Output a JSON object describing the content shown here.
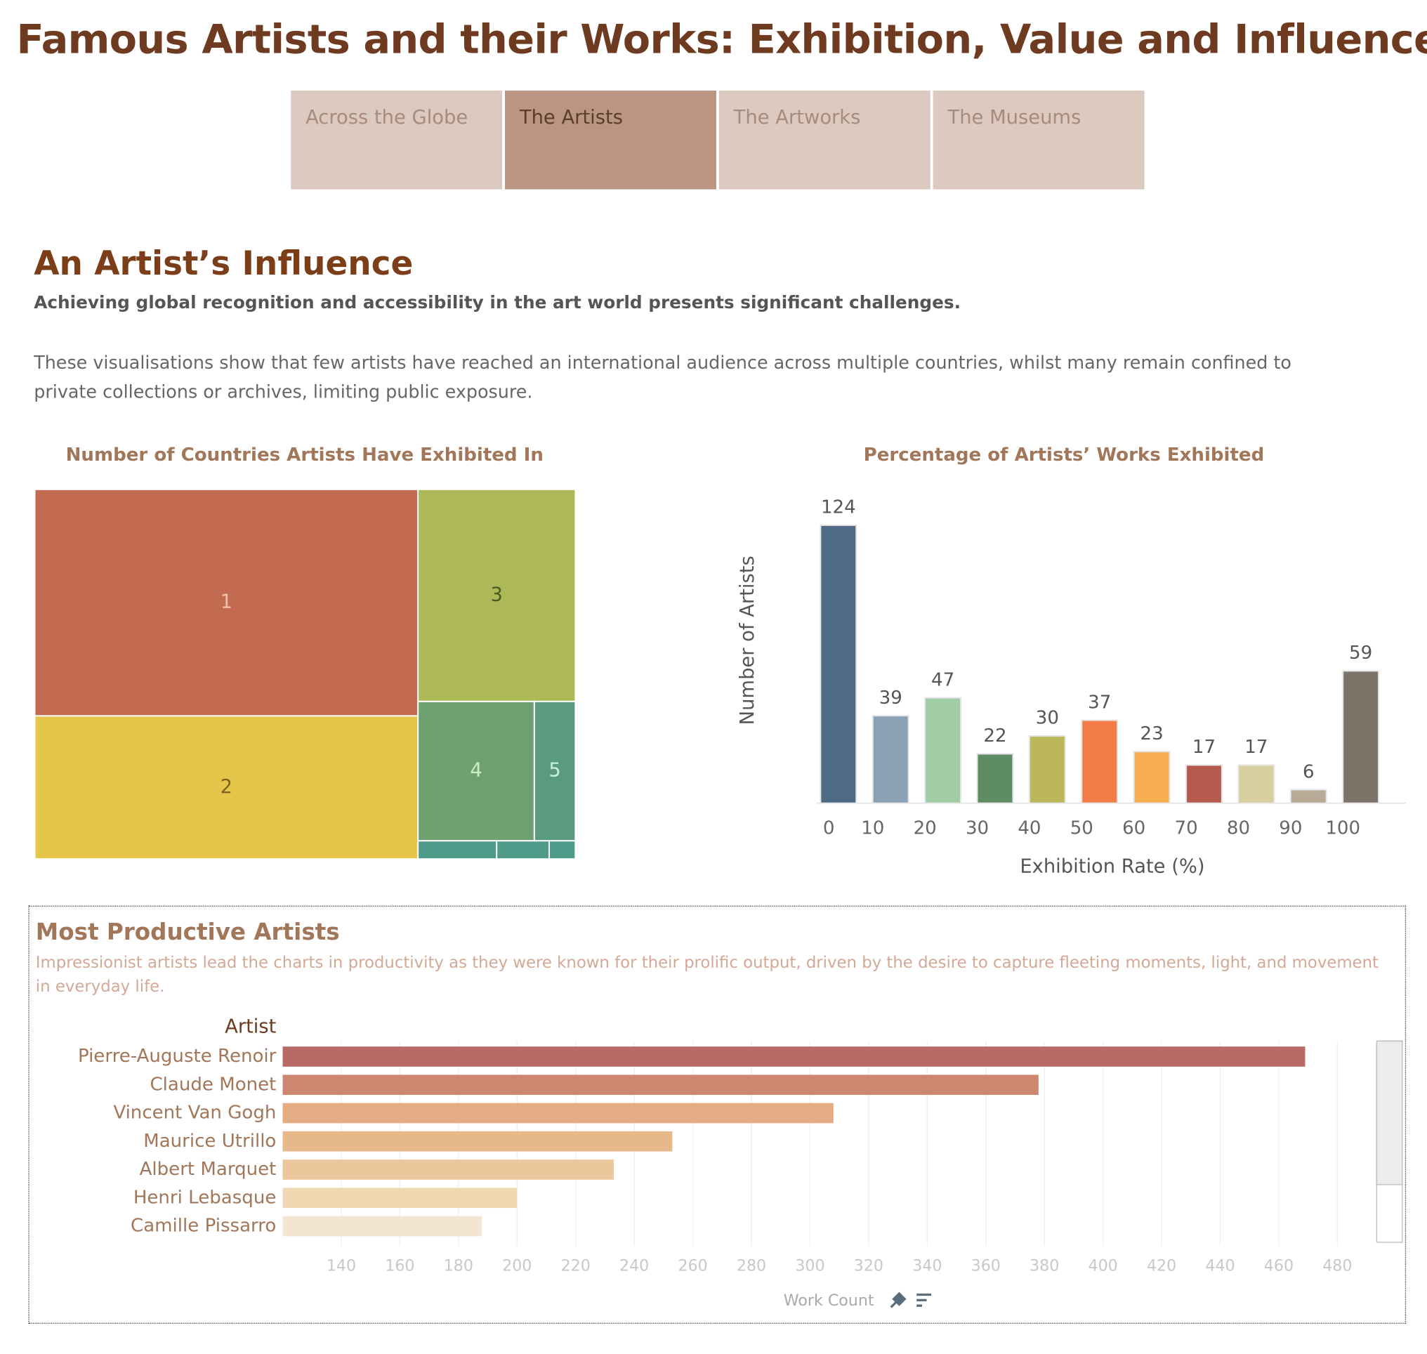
{
  "header": {
    "title": "Famous Artists and their Works: Exhibition, Value and Influence"
  },
  "tabs": [
    "Across the Globe",
    "The Artists",
    "The Artworks",
    "The Museums"
  ],
  "active_tab": 1,
  "section": {
    "title": "An Artist’s Influence",
    "lead": "Achieving global recognition and accessibility in the art world presents significant challenges.",
    "body": "These visualisations show that few artists have reached an international audience across multiple countries, whilst many remain confined to private collections or archives, limiting public exposure."
  },
  "chart_data": [
    {
      "type": "treemap",
      "title": "Number of Countries Artists Have Exhibited In",
      "categories": [
        "1",
        "2",
        "3",
        "4",
        "5",
        null,
        null,
        null
      ],
      "values": [
        182,
        115,
        70,
        34,
        12,
        3,
        2,
        1
      ],
      "colors": [
        "#c26b50",
        "#e6c54b",
        "#adb858",
        "#6fa070",
        "#5a9a80",
        "#4f9a88",
        "#4f9a88",
        "#4f9a88"
      ]
    },
    {
      "type": "bar",
      "title": "Percentage of Artists’ Works Exhibited",
      "categories": [
        "0",
        "10",
        "20",
        "30",
        "40",
        "50",
        "60",
        "70",
        "80",
        "90",
        "100"
      ],
      "values": [
        124,
        39,
        47,
        22,
        30,
        37,
        23,
        17,
        17,
        6,
        59
      ],
      "colors": [
        "#4e6a84",
        "#8aa0b5",
        "#a1cca6",
        "#5e8c63",
        "#bdb75c",
        "#f27b48",
        "#f7ae53",
        "#b55a4f",
        "#d8cf9f",
        "#b9aa98",
        "#7d7369"
      ],
      "ylim": [
        0,
        140
      ],
      "y_label": "Number of Artists",
      "x_label": "Exhibition Rate (%)"
    },
    {
      "type": "hbar",
      "title": "Most Productive Artists",
      "subtitle": "Impressionist artists lead the charts in productivity as  they  were known for their prolific output, driven by the desire to capture fleeting moments, light, and movement in everyday life.",
      "category_label": "Artist",
      "categories": [
        "Pierre-Auguste Renoir",
        "Claude Monet",
        "Vincent Van Gogh",
        "Maurice Utrillo",
        "Albert Marquet",
        "Henri Lebasque",
        "Camille Pissarro"
      ],
      "values": [
        469,
        378,
        308,
        253,
        233,
        200,
        188
      ],
      "colors": [
        "#b86a67",
        "#cd8670",
        "#e3ac83",
        "#e7b98a",
        "#ecc79c",
        "#f0d8b3",
        "#f3e5d1"
      ],
      "xlim": [
        120,
        490
      ],
      "xticks": [
        140,
        160,
        180,
        200,
        220,
        240,
        260,
        280,
        300,
        320,
        340,
        360,
        380,
        400,
        420,
        440,
        460,
        480
      ],
      "x_label": "Work Count",
      "grid": true
    }
  ]
}
